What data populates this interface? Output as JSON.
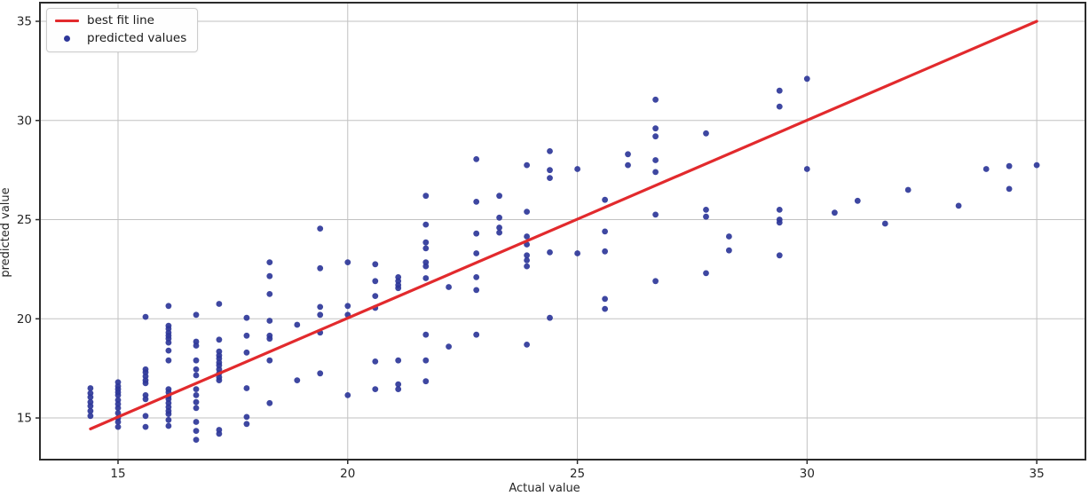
{
  "chart_data": {
    "type": "scatter",
    "title": "",
    "xlabel": "Actual value",
    "ylabel": "predicted value",
    "xlim": [
      13.3,
      36.06
    ],
    "ylim": [
      12.9,
      35.94
    ],
    "x_ticks": [
      15,
      20,
      25,
      30,
      35
    ],
    "y_ticks": [
      15,
      20,
      25,
      30,
      35
    ],
    "grid": true,
    "colors": {
      "line": "#e22a2d",
      "marker": "#2e3799",
      "grid": "#c2c2c2",
      "spine": "#2b2b2b",
      "tick_label": "#262626",
      "background": "#ffffff"
    },
    "legend": {
      "position": "upper left",
      "entries": [
        {
          "label": "best fit line",
          "type": "line",
          "color": "#e22a2d"
        },
        {
          "label": "predicted values",
          "type": "dot",
          "color": "#2e3799"
        }
      ]
    },
    "best_fit_line": {
      "x": [
        14.4,
        35.0
      ],
      "y": [
        14.45,
        35.0
      ]
    },
    "series": [
      {
        "name": "predicted values",
        "points": [
          [
            14.4,
            16.5
          ],
          [
            14.4,
            16.25
          ],
          [
            14.4,
            16.05
          ],
          [
            14.4,
            15.8
          ],
          [
            14.4,
            15.6
          ],
          [
            14.4,
            15.35
          ],
          [
            14.4,
            15.1
          ],
          [
            15.0,
            16.8
          ],
          [
            15.0,
            16.6
          ],
          [
            15.0,
            16.45
          ],
          [
            15.0,
            16.3
          ],
          [
            15.0,
            16.15
          ],
          [
            15.0,
            15.9
          ],
          [
            15.0,
            15.7
          ],
          [
            15.0,
            15.5
          ],
          [
            15.0,
            15.25
          ],
          [
            15.0,
            15.0
          ],
          [
            15.0,
            14.8
          ],
          [
            15.0,
            14.55
          ],
          [
            15.6,
            20.1
          ],
          [
            15.6,
            17.45
          ],
          [
            15.6,
            17.3
          ],
          [
            15.6,
            17.1
          ],
          [
            15.6,
            16.9
          ],
          [
            15.6,
            16.75
          ],
          [
            15.6,
            16.15
          ],
          [
            15.6,
            15.95
          ],
          [
            15.6,
            15.1
          ],
          [
            15.6,
            14.55
          ],
          [
            16.1,
            20.65
          ],
          [
            16.1,
            19.65
          ],
          [
            16.1,
            19.5
          ],
          [
            16.1,
            19.3
          ],
          [
            16.1,
            19.15
          ],
          [
            16.1,
            19.0
          ],
          [
            16.1,
            18.8
          ],
          [
            16.1,
            18.4
          ],
          [
            16.1,
            17.9
          ],
          [
            16.1,
            16.45
          ],
          [
            16.1,
            16.3
          ],
          [
            16.1,
            16.1
          ],
          [
            16.1,
            15.95
          ],
          [
            16.1,
            15.75
          ],
          [
            16.1,
            15.55
          ],
          [
            16.1,
            15.35
          ],
          [
            16.1,
            15.2
          ],
          [
            16.1,
            14.9
          ],
          [
            16.1,
            14.6
          ],
          [
            16.7,
            20.2
          ],
          [
            16.7,
            18.85
          ],
          [
            16.7,
            18.65
          ],
          [
            16.7,
            17.9
          ],
          [
            16.7,
            17.45
          ],
          [
            16.7,
            17.15
          ],
          [
            16.7,
            16.45
          ],
          [
            16.7,
            16.15
          ],
          [
            16.7,
            15.8
          ],
          [
            16.7,
            15.5
          ],
          [
            16.7,
            14.8
          ],
          [
            16.7,
            14.35
          ],
          [
            16.7,
            13.9
          ],
          [
            17.2,
            20.75
          ],
          [
            17.2,
            18.95
          ],
          [
            17.2,
            18.35
          ],
          [
            17.2,
            18.15
          ],
          [
            17.2,
            18.0
          ],
          [
            17.2,
            17.8
          ],
          [
            17.2,
            17.65
          ],
          [
            17.2,
            17.45
          ],
          [
            17.2,
            17.25
          ],
          [
            17.2,
            17.05
          ],
          [
            17.2,
            16.9
          ],
          [
            17.2,
            14.4
          ],
          [
            17.2,
            14.2
          ],
          [
            17.8,
            20.05
          ],
          [
            17.8,
            19.15
          ],
          [
            17.8,
            18.3
          ],
          [
            17.8,
            16.5
          ],
          [
            17.8,
            15.05
          ],
          [
            17.8,
            14.7
          ],
          [
            18.3,
            22.85
          ],
          [
            18.3,
            22.15
          ],
          [
            18.3,
            21.25
          ],
          [
            18.3,
            19.9
          ],
          [
            18.3,
            19.15
          ],
          [
            18.3,
            19.0
          ],
          [
            18.3,
            17.9
          ],
          [
            18.3,
            15.75
          ],
          [
            18.9,
            19.7
          ],
          [
            18.9,
            16.9
          ],
          [
            19.4,
            24.55
          ],
          [
            19.4,
            22.55
          ],
          [
            19.4,
            20.6
          ],
          [
            19.4,
            20.2
          ],
          [
            19.4,
            19.3
          ],
          [
            19.4,
            17.25
          ],
          [
            20.0,
            22.85
          ],
          [
            20.0,
            20.65
          ],
          [
            20.0,
            20.2
          ],
          [
            20.0,
            16.15
          ],
          [
            20.6,
            22.75
          ],
          [
            20.6,
            21.9
          ],
          [
            20.6,
            21.15
          ],
          [
            20.6,
            20.55
          ],
          [
            20.6,
            17.85
          ],
          [
            20.6,
            16.45
          ],
          [
            21.1,
            22.1
          ],
          [
            21.1,
            21.9
          ],
          [
            21.1,
            21.7
          ],
          [
            21.1,
            21.55
          ],
          [
            21.1,
            17.9
          ],
          [
            21.1,
            16.7
          ],
          [
            21.1,
            16.45
          ],
          [
            21.7,
            26.2
          ],
          [
            21.7,
            24.75
          ],
          [
            21.7,
            23.85
          ],
          [
            21.7,
            23.55
          ],
          [
            21.7,
            22.85
          ],
          [
            21.7,
            22.65
          ],
          [
            21.7,
            22.05
          ],
          [
            21.7,
            19.2
          ],
          [
            21.7,
            17.9
          ],
          [
            21.7,
            16.85
          ],
          [
            22.2,
            21.6
          ],
          [
            22.2,
            18.6
          ],
          [
            22.8,
            28.05
          ],
          [
            22.8,
            25.9
          ],
          [
            22.8,
            24.3
          ],
          [
            22.8,
            23.3
          ],
          [
            22.8,
            22.1
          ],
          [
            22.8,
            21.45
          ],
          [
            22.8,
            19.2
          ],
          [
            23.3,
            26.2
          ],
          [
            23.3,
            25.1
          ],
          [
            23.3,
            24.6
          ],
          [
            23.3,
            24.35
          ],
          [
            23.9,
            27.75
          ],
          [
            23.9,
            25.4
          ],
          [
            23.9,
            24.15
          ],
          [
            23.9,
            23.75
          ],
          [
            23.9,
            23.2
          ],
          [
            23.9,
            22.95
          ],
          [
            23.9,
            22.65
          ],
          [
            23.9,
            18.7
          ],
          [
            24.4,
            28.45
          ],
          [
            24.4,
            27.5
          ],
          [
            24.4,
            27.1
          ],
          [
            24.4,
            23.35
          ],
          [
            24.4,
            20.05
          ],
          [
            25.0,
            27.55
          ],
          [
            25.0,
            23.3
          ],
          [
            25.6,
            26.0
          ],
          [
            25.6,
            24.4
          ],
          [
            25.6,
            23.4
          ],
          [
            25.6,
            21.0
          ],
          [
            25.6,
            20.5
          ],
          [
            26.1,
            28.3
          ],
          [
            26.1,
            27.75
          ],
          [
            26.7,
            31.05
          ],
          [
            26.7,
            29.6
          ],
          [
            26.7,
            29.2
          ],
          [
            26.7,
            28.0
          ],
          [
            26.7,
            27.4
          ],
          [
            26.7,
            25.25
          ],
          [
            26.7,
            21.9
          ],
          [
            27.8,
            29.35
          ],
          [
            27.8,
            25.5
          ],
          [
            27.8,
            25.15
          ],
          [
            27.8,
            22.3
          ],
          [
            28.3,
            24.15
          ],
          [
            28.3,
            23.45
          ],
          [
            29.4,
            31.5
          ],
          [
            29.4,
            30.7
          ],
          [
            29.4,
            25.5
          ],
          [
            29.4,
            25.0
          ],
          [
            29.4,
            24.85
          ],
          [
            29.4,
            23.2
          ],
          [
            30.0,
            32.1
          ],
          [
            30.0,
            27.55
          ],
          [
            30.6,
            25.35
          ],
          [
            31.1,
            25.95
          ],
          [
            31.7,
            24.8
          ],
          [
            32.2,
            26.5
          ],
          [
            33.3,
            25.7
          ],
          [
            33.9,
            27.55
          ],
          [
            34.4,
            27.7
          ],
          [
            34.4,
            26.55
          ],
          [
            35.0,
            27.75
          ]
        ]
      }
    ]
  }
}
